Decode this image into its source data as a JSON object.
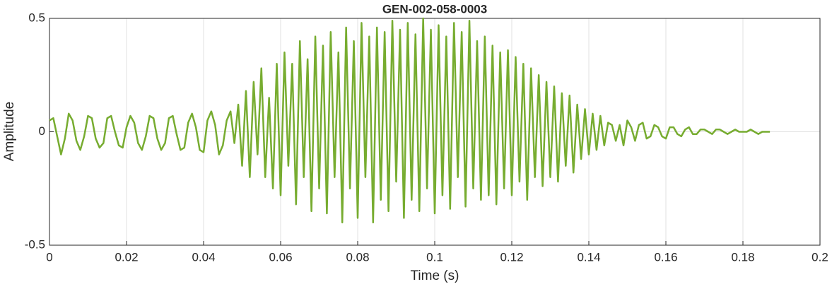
{
  "chart_data": {
    "type": "line",
    "title": "GEN-002-058-0003",
    "xlabel": "Time (s)",
    "ylabel": "Amplitude",
    "xlim": [
      0,
      0.2
    ],
    "ylim": [
      -0.5,
      0.5
    ],
    "xticks": [
      0,
      0.02,
      0.04,
      0.06,
      0.08,
      0.1,
      0.12,
      0.14,
      0.16,
      0.18,
      0.2
    ],
    "yticks": [
      -0.5,
      0,
      0.5
    ],
    "grid": true,
    "x": [
      0,
      0.001,
      0.002,
      0.003,
      0.004,
      0.005,
      0.006,
      0.007,
      0.008,
      0.009,
      0.01,
      0.011,
      0.012,
      0.013,
      0.014,
      0.015,
      0.016,
      0.017,
      0.018,
      0.019,
      0.02,
      0.021,
      0.022,
      0.023,
      0.024,
      0.025,
      0.026,
      0.027,
      0.028,
      0.029,
      0.03,
      0.031,
      0.032,
      0.033,
      0.034,
      0.035,
      0.036,
      0.037,
      0.038,
      0.039,
      0.04,
      0.041,
      0.042,
      0.043,
      0.044,
      0.045,
      0.046,
      0.047,
      0.048,
      0.049,
      0.05,
      0.051,
      0.052,
      0.053,
      0.054,
      0.055,
      0.056,
      0.057,
      0.058,
      0.059,
      0.06,
      0.061,
      0.062,
      0.063,
      0.064,
      0.065,
      0.066,
      0.067,
      0.068,
      0.069,
      0.07,
      0.071,
      0.072,
      0.073,
      0.074,
      0.075,
      0.076,
      0.077,
      0.078,
      0.079,
      0.08,
      0.081,
      0.082,
      0.083,
      0.084,
      0.085,
      0.086,
      0.087,
      0.088,
      0.089,
      0.09,
      0.091,
      0.092,
      0.093,
      0.094,
      0.095,
      0.096,
      0.097,
      0.098,
      0.099,
      0.1,
      0.101,
      0.102,
      0.103,
      0.104,
      0.105,
      0.106,
      0.107,
      0.108,
      0.109,
      0.11,
      0.111,
      0.112,
      0.113,
      0.114,
      0.115,
      0.116,
      0.117,
      0.118,
      0.119,
      0.12,
      0.121,
      0.122,
      0.123,
      0.124,
      0.125,
      0.126,
      0.127,
      0.128,
      0.129,
      0.13,
      0.131,
      0.132,
      0.133,
      0.134,
      0.135,
      0.136,
      0.137,
      0.138,
      0.139,
      0.14,
      0.141,
      0.142,
      0.143,
      0.144,
      0.145,
      0.146,
      0.147,
      0.148,
      0.149,
      0.15,
      0.151,
      0.152,
      0.153,
      0.154,
      0.155,
      0.156,
      0.157,
      0.158,
      0.159,
      0.16,
      0.161,
      0.162,
      0.163,
      0.164,
      0.165,
      0.166,
      0.167,
      0.168,
      0.169,
      0.17,
      0.171,
      0.172,
      0.173,
      0.174,
      0.175,
      0.176,
      0.177,
      0.178,
      0.179,
      0.18,
      0.181,
      0.182,
      0.183,
      0.184,
      0.185,
      0.186,
      0.187
    ],
    "series": [
      {
        "color": "#77ac30",
        "values": [
          0.05,
          0.06,
          -0.02,
          -0.1,
          -0.03,
          0.08,
          0.05,
          -0.04,
          -0.08,
          -0.02,
          0.07,
          0.06,
          -0.03,
          -0.07,
          -0.05,
          0.06,
          0.07,
          0,
          -0.06,
          -0.07,
          0.02,
          0.07,
          0.04,
          -0.05,
          -0.08,
          -0.02,
          0.07,
          0.06,
          -0.03,
          -0.08,
          -0.05,
          0.06,
          0.07,
          -0.01,
          -0.08,
          -0.07,
          0.04,
          0.08,
          0.02,
          -0.08,
          -0.09,
          0.05,
          0.09,
          0.03,
          -0.1,
          -0.06,
          0.05,
          0.09,
          -0.05,
          0.12,
          -0.15,
          0.18,
          -0.2,
          0.22,
          -0.1,
          0.28,
          -0.2,
          0.15,
          -0.25,
          0.3,
          -0.28,
          0.35,
          -0.15,
          0.3,
          -0.32,
          0.4,
          -0.2,
          0.32,
          -0.35,
          0.42,
          -0.25,
          0.38,
          -0.36,
          0.44,
          -0.2,
          0.35,
          -0.4,
          0.46,
          -0.25,
          0.4,
          -0.38,
          0.48,
          -0.2,
          0.42,
          -0.4,
          0.46,
          -0.3,
          0.44,
          -0.35,
          0.49,
          -0.22,
          0.45,
          -0.38,
          0.48,
          -0.3,
          0.43,
          -0.35,
          0.5,
          -0.25,
          0.45,
          -0.36,
          0.47,
          -0.28,
          0.42,
          -0.34,
          0.48,
          -0.2,
          0.44,
          -0.33,
          0.49,
          -0.25,
          0.4,
          -0.3,
          0.42,
          -0.28,
          0.38,
          -0.32,
          0.35,
          -0.25,
          0.36,
          -0.28,
          0.33,
          -0.22,
          0.3,
          -0.3,
          0.28,
          -0.2,
          0.25,
          -0.24,
          0.22,
          -0.2,
          0.2,
          -0.22,
          0.17,
          -0.15,
          0.16,
          -0.18,
          0.12,
          -0.12,
          0.1,
          -0.1,
          0.08,
          -0.08,
          0.07,
          -0.06,
          0.04,
          0.03,
          -0.04,
          0.03,
          -0.06,
          0.05,
          0.02,
          -0.04,
          0.03,
          0.04,
          -0.03,
          -0.02,
          0.03,
          0.02,
          -0.02,
          -0.03,
          0.02,
          0.02,
          -0.01,
          -0.02,
          0.01,
          0.02,
          -0.01,
          -0.01,
          0.01,
          0.01,
          0,
          -0.01,
          0.01,
          0.01,
          0,
          -0.01,
          0,
          0.01,
          0,
          0,
          0,
          0.01,
          0,
          -0.01,
          0,
          0,
          0
        ]
      }
    ]
  }
}
